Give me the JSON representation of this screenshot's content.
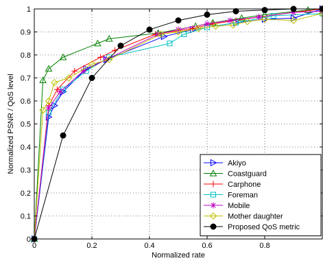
{
  "chart_data": {
    "type": "line",
    "xlabel": "Normalized rate",
    "ylabel": "Normalized PSNR / QoS level",
    "xlim": [
      0,
      1
    ],
    "ylim": [
      0,
      1
    ],
    "x_ticks": [
      0,
      0.2,
      0.4,
      0.6,
      0.8
    ],
    "x_tick_labels": [
      "0",
      "0.2",
      "0.4",
      "0.6",
      "0.8"
    ],
    "y_ticks": [
      0,
      0.1,
      0.2,
      0.3,
      0.4,
      0.5,
      0.6,
      0.7,
      0.8,
      0.9,
      1
    ],
    "y_tick_labels": [
      "0",
      "0.1",
      "0.2",
      "0.3",
      "0.4",
      "0.5",
      "0.6",
      "0.7",
      "0.8",
      "0.9",
      "1"
    ],
    "grid": true,
    "legend_position": "bottom-right",
    "series": [
      {
        "name": "Akiyo",
        "color": "#0000ff",
        "marker": "triangle-right",
        "x": [
          0,
          0.05,
          0.07,
          0.1,
          0.18,
          0.25,
          0.45,
          0.55,
          0.7,
          0.8,
          0.9,
          1.0
        ],
        "y": [
          0,
          0.53,
          0.58,
          0.64,
          0.74,
          0.78,
          0.88,
          0.91,
          0.94,
          0.955,
          0.96,
          1.0
        ]
      },
      {
        "name": "Coastguard",
        "color": "#008000",
        "marker": "triangle-up",
        "x": [
          0,
          0.03,
          0.05,
          0.1,
          0.22,
          0.26,
          0.43,
          0.56,
          0.62,
          0.72,
          0.8,
          0.95,
          1.0
        ],
        "y": [
          0,
          0.69,
          0.74,
          0.79,
          0.85,
          0.87,
          0.895,
          0.925,
          0.94,
          0.96,
          0.975,
          0.995,
          1.0
        ]
      },
      {
        "name": "Carphone",
        "color": "#ff0000",
        "marker": "plus",
        "x": [
          0,
          0.05,
          0.08,
          0.14,
          0.23,
          0.28,
          0.42,
          0.55,
          0.62,
          0.7,
          0.78,
          0.9,
          1.0
        ],
        "y": [
          0,
          0.58,
          0.65,
          0.73,
          0.79,
          0.82,
          0.89,
          0.915,
          0.935,
          0.95,
          0.965,
          0.985,
          1.0
        ]
      },
      {
        "name": "Foreman",
        "color": "#00bfbf",
        "marker": "square",
        "x": [
          0,
          0.05,
          0.1,
          0.18,
          0.26,
          0.47,
          0.52,
          0.6,
          0.7,
          0.83,
          1.0
        ],
        "y": [
          0,
          0.55,
          0.65,
          0.73,
          0.79,
          0.85,
          0.89,
          0.92,
          0.94,
          0.97,
          0.98
        ]
      },
      {
        "name": "Mobile",
        "color": "#bf00bf",
        "marker": "asterisk",
        "x": [
          0,
          0.05,
          0.09,
          0.17,
          0.25,
          0.43,
          0.5,
          0.6,
          0.68,
          0.78,
          0.9,
          1.0
        ],
        "y": [
          0,
          0.57,
          0.64,
          0.73,
          0.78,
          0.89,
          0.91,
          0.935,
          0.95,
          0.965,
          0.985,
          0.99
        ]
      },
      {
        "name": "Mother daughter",
        "color": "#bfbf00",
        "marker": "diamond",
        "x": [
          0,
          0.03,
          0.05,
          0.07,
          0.12,
          0.2,
          0.26,
          0.44,
          0.5,
          0.57,
          0.63,
          0.69,
          0.74,
          0.8,
          0.9,
          1.0
        ],
        "y": [
          0,
          0.56,
          0.6,
          0.68,
          0.7,
          0.76,
          0.78,
          0.89,
          0.9,
          0.915,
          0.925,
          0.93,
          0.945,
          0.955,
          0.95,
          0.98
        ]
      },
      {
        "name": "Proposed QoS metric",
        "color": "#000000",
        "marker": "circle",
        "x": [
          0,
          0.1,
          0.2,
          0.3,
          0.4,
          0.5,
          0.6,
          0.7,
          0.8,
          0.9,
          1.0
        ],
        "y": [
          0,
          0.45,
          0.7,
          0.84,
          0.91,
          0.95,
          0.975,
          0.99,
          0.995,
          1.0,
          1.0
        ]
      }
    ]
  }
}
